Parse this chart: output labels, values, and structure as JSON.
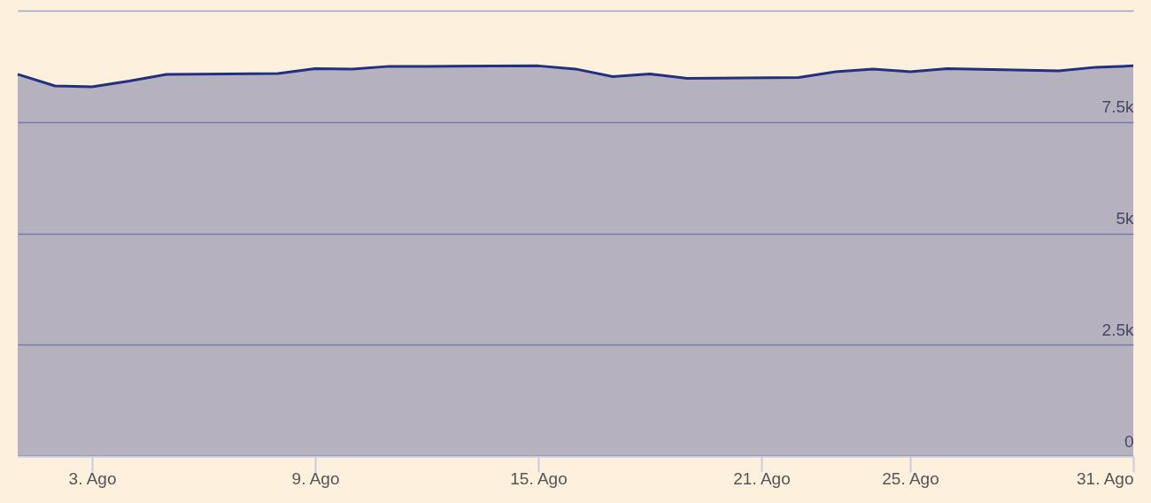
{
  "chart_data": {
    "type": "area",
    "x": [
      "--08-01",
      "--08-02",
      "--08-03",
      "--08-04",
      "--08-05",
      "--08-08",
      "--08-09",
      "--08-10",
      "--08-11",
      "--08-12",
      "--08-15",
      "--08-16",
      "--08-17",
      "--08-18",
      "--08-19",
      "--08-22",
      "--08-23",
      "--08-24",
      "--08-25",
      "--08-26",
      "--08-29",
      "--08-30",
      "--08-31"
    ],
    "series": [
      {
        "color": "#23307f",
        "values": [
          8570,
          8310,
          8290,
          8420,
          8570,
          8590,
          8700,
          8690,
          8750,
          8750,
          8760,
          8690,
          8520,
          8580,
          8480,
          8500,
          8630,
          8690,
          8630,
          8700,
          8650,
          8730,
          8760
        ]
      }
    ],
    "xlim": [
      "--08-01",
      "--08-31"
    ],
    "xticks": [
      {
        "value": "--08-03",
        "label": "3. Ago"
      },
      {
        "value": "--08-09",
        "label": "9. Ago"
      },
      {
        "value": "--08-15",
        "label": "15. Ago"
      },
      {
        "value": "--08-21",
        "label": "21. Ago"
      },
      {
        "value": "--08-25",
        "label": "25. Ago"
      },
      {
        "value": "--08-31",
        "label": "31. Ago"
      }
    ],
    "ylim": [
      0,
      10000
    ],
    "yticks": [
      {
        "value": 0,
        "label": "0"
      },
      {
        "value": 2500,
        "label": "2.5k"
      },
      {
        "value": 5000,
        "label": "5k"
      },
      {
        "value": 7500,
        "label": "7.5k"
      },
      {
        "value": 10000,
        "label": null
      }
    ],
    "grid": "y"
  }
}
